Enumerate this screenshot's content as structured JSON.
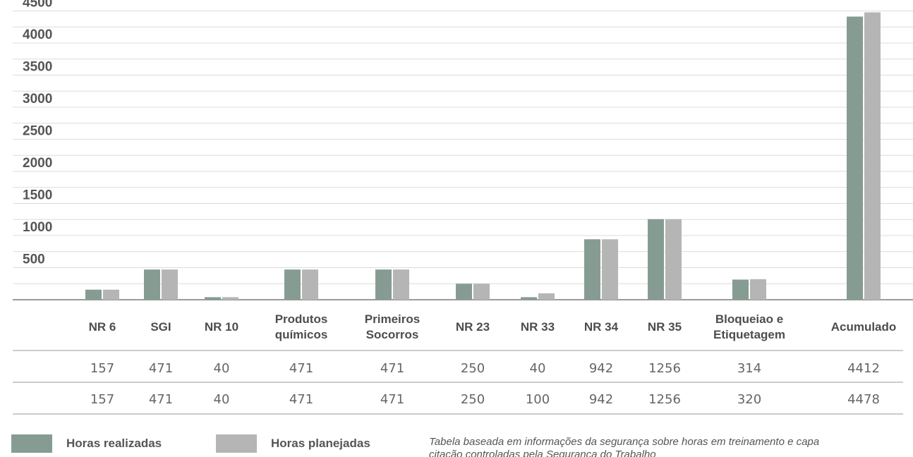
{
  "chart_data": {
    "type": "bar",
    "categories": [
      "NR 6",
      "SGI",
      "NR 10",
      "Produtos\nquímicos",
      "Primeiros\nSocorros",
      "NR 23",
      "NR 33",
      "NR 34",
      "NR 35",
      "Bloqueiao e\nEtiquetagem",
      "Acumulado"
    ],
    "series": [
      {
        "name": "Horas realizadas",
        "color": "#869c93",
        "values": [
          157,
          471,
          40,
          471,
          471,
          250,
          40,
          942,
          1256,
          314,
          4412
        ]
      },
      {
        "name": "Horas planejadas",
        "color": "#b5b5b5",
        "values": [
          157,
          471,
          40,
          471,
          471,
          250,
          100,
          942,
          1256,
          320,
          4478
        ]
      }
    ],
    "yticks": [
      500,
      1000,
      1500,
      2000,
      2500,
      3000,
      3500,
      4000,
      4500
    ],
    "ylim": [
      0,
      4500
    ],
    "grid": true,
    "legend": "bottom-left",
    "title": "",
    "xlabel": "",
    "ylabel": ""
  },
  "legend": {
    "realizadas_label": "Horas realizadas",
    "planejadas_label": "Horas planejadas"
  },
  "footnote": {
    "line1": "Tabela baseada em informações da segurança sobre horas em treinamento e capa",
    "line2": "citação controladas pela Segurança do Trabalho"
  }
}
